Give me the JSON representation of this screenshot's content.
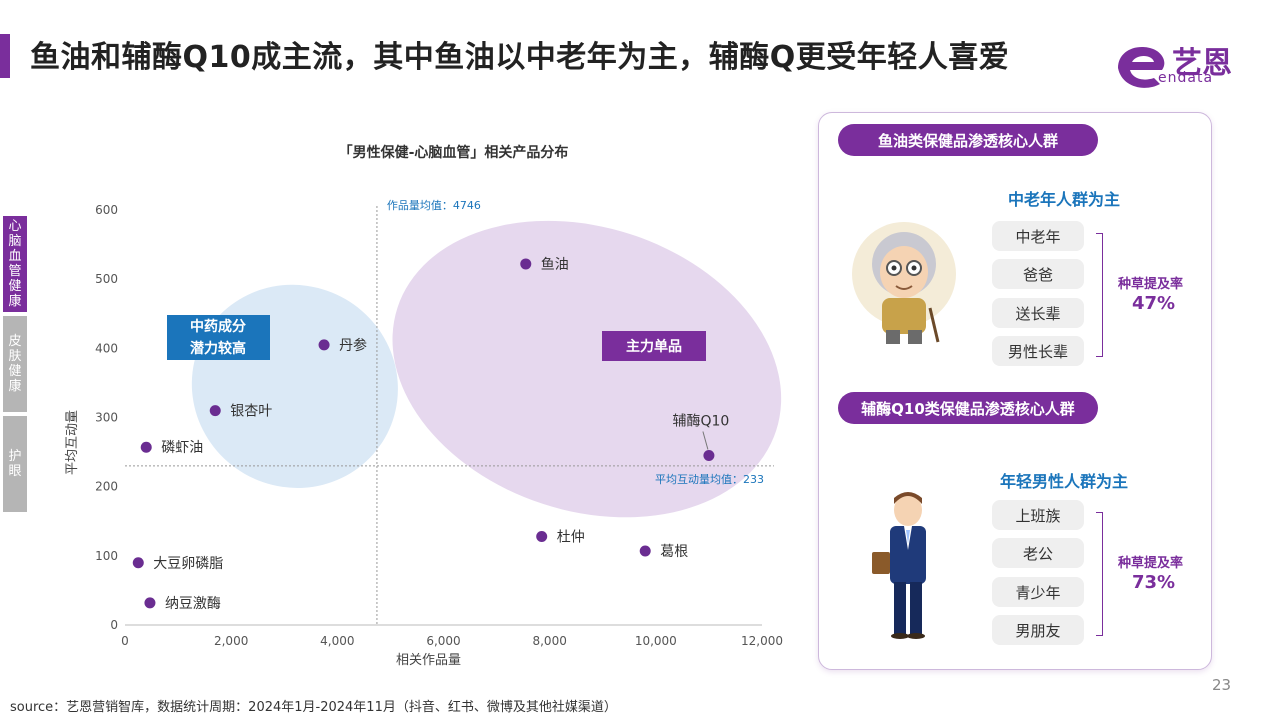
{
  "header": {
    "title": "鱼油和辅酶Q10成主流，其中鱼油以中老年为主，辅酶Q更受年轻人喜爱",
    "logo_text": "艺恩",
    "logo_sub": "endata"
  },
  "side_tabs": [
    "心脑血管健康",
    "皮肤健康",
    "护眼"
  ],
  "chart_data": {
    "type": "scatter",
    "title": "「男性保健-心脑血管」相关产品分布",
    "xlabel": "相关作品量",
    "ylabel": "平均互动量",
    "xlim": [
      0,
      12000
    ],
    "ylim": [
      0,
      600
    ],
    "x_ticks": [
      "0",
      "2,000",
      "4,000",
      "6,000",
      "8,000",
      "10,000",
      "12,000"
    ],
    "y_ticks": [
      "0",
      "100",
      "200",
      "300",
      "400",
      "500",
      "600"
    ],
    "points": [
      {
        "label": "鱼油",
        "x": 7550,
        "y": 522
      },
      {
        "label": "丹参",
        "x": 3750,
        "y": 405
      },
      {
        "label": "银杏叶",
        "x": 1700,
        "y": 310
      },
      {
        "label": "磷虾油",
        "x": 400,
        "y": 257
      },
      {
        "label": "辅酶Q10",
        "x": 11000,
        "y": 245
      },
      {
        "label": "杜仲",
        "x": 7850,
        "y": 128
      },
      {
        "label": "葛根",
        "x": 9800,
        "y": 107
      },
      {
        "label": "大豆卵磷脂",
        "x": 250,
        "y": 90
      },
      {
        "label": "纳豆激酶",
        "x": 470,
        "y": 32
      }
    ],
    "mean_x": {
      "value": 4746,
      "label": "作品量均值：4746"
    },
    "mean_y": {
      "value": 233,
      "label": "平均互动量均值：233"
    },
    "annotations": [
      "中药成分\n潜力较高",
      "主力单品"
    ],
    "point_color": "#6a2d91",
    "blue_region_color": "#dbe9f6",
    "purple_region_color": "#e6d8ee",
    "annotation_blue": "#1b75bb",
    "annotation_purple": "#7a2e9c",
    "grid": false
  },
  "panel": {
    "section1": {
      "pill": "鱼油类保健品渗透核心人群",
      "subhead": "中老年人群为主",
      "tags": [
        "中老年",
        "爸爸",
        "送长辈",
        "男性长辈"
      ],
      "rate_label": "种草提及率",
      "rate_value": "47%"
    },
    "section2": {
      "pill": "辅酶Q10类保健品渗透核心人群",
      "subhead": "年轻男性人群为主",
      "tags": [
        "上班族",
        "老公",
        "青少年",
        "男朋友"
      ],
      "rate_label": "种草提及率",
      "rate_value": "73%"
    }
  },
  "footer": {
    "source": "source：艺恩营销智库，数据统计周期：2024年1月-2024年11月（抖音、红书、微博及其他社媒渠道）",
    "page_number": "23"
  },
  "colors": {
    "brand_purple": "#7a2e9c",
    "accent_blue": "#1b75bb"
  }
}
